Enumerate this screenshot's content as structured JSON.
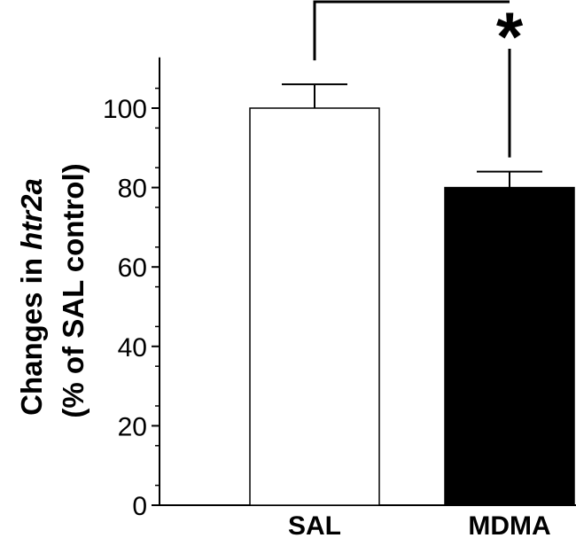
{
  "chart_data": {
    "type": "bar",
    "categories": [
      "SAL",
      "MDMA"
    ],
    "values": [
      100,
      80
    ],
    "error_plus": [
      6,
      4
    ],
    "ylabel_line1_prefix": "Changes in ",
    "ylabel_line1_gene": "htr2a",
    "ylabel_line2": "(% of SAL control)",
    "yticks": [
      "0",
      "20",
      "40",
      "60",
      "80",
      "100"
    ],
    "ylim": [
      0,
      115
    ],
    "significance_marker": "*",
    "colors": {
      "SAL": "#ffffff",
      "MDMA": "#000000"
    },
    "grid": false,
    "legend": "none"
  }
}
